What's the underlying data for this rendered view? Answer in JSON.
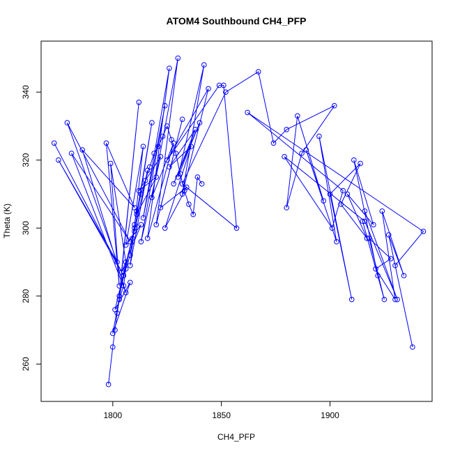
{
  "chart_data": {
    "type": "line",
    "title": "ATOM4 Southbound CH4_PFP",
    "xlabel": "CH4_PFP",
    "ylabel": "Theta (K)",
    "xlim": [
      1767,
      1947
    ],
    "ylim": [
      249,
      355
    ],
    "xticks": [
      1800,
      1850,
      1900
    ],
    "yticks": [
      260,
      280,
      300,
      320,
      340
    ],
    "grid": false,
    "legend": "none",
    "color": "#0000ff",
    "series": [
      {
        "x": [
          1773,
          1805,
          1775,
          1802,
          1779,
          1808,
          1781,
          1806,
          1786,
          1810,
          1797,
          1803,
          1799,
          1806,
          1800,
          1808,
          1801,
          1810,
          1803,
          1812,
          1804,
          1813,
          1806,
          1814,
          1808,
          1816,
          1810,
          1818,
          1811,
          1820,
          1812,
          1822,
          1813,
          1824,
          1814,
          1826,
          1816,
          1828,
          1818,
          1830,
          1820,
          1832,
          1822,
          1834,
          1824,
          1836,
          1826,
          1838,
          1828,
          1840,
          1830,
          1842,
          1832,
          1844,
          1825,
          1849,
          1851,
          1857,
          1832,
          1852,
          1867,
          1874,
          1880,
          1902,
          1887,
          1880,
          1885,
          1897,
          1889,
          1903,
          1895,
          1910,
          1900,
          1914,
          1905,
          1917,
          1908,
          1920,
          1911,
          1922,
          1915,
          1925,
          1918,
          1928,
          1921,
          1930,
          1924,
          1934,
          1927,
          1938,
          1930,
          1943,
          1862,
          1906,
          1901,
          1879,
          1916,
          1931,
          1916
        ],
        "y": [
          325,
          286,
          320,
          290,
          331,
          296,
          322,
          281,
          323,
          306,
          325,
          283,
          319,
          290,
          269,
          284,
          276,
          300,
          280,
          337,
          287,
          301,
          295,
          324,
          289,
          317,
          299,
          331,
          304,
          315,
          311,
          321,
          296,
          336,
          303,
          347,
          297,
          325,
          309,
          350,
          301,
          332,
          306,
          312,
          300,
          324,
          318,
          329,
          313,
          331,
          315,
          348,
          310,
          341,
          320,
          342,
          342,
          300,
          313,
          340,
          346,
          325,
          329,
          336,
          322,
          306,
          333,
          308,
          323,
          296,
          327,
          279,
          310,
          319,
          307,
          297,
          310,
          301,
          320,
          286,
          302,
          279,
          297,
          291,
          288,
          279,
          305,
          286,
          298,
          265,
          289,
          299,
          334,
          311,
          300,
          321,
          302,
          279,
          305
        ]
      },
      {
        "x": [
          1798,
          1800,
          1801,
          1802,
          1803,
          1805,
          1806,
          1808,
          1809,
          1810,
          1811,
          1813,
          1815,
          1817,
          1819,
          1821,
          1823,
          1825,
          1827,
          1829,
          1831,
          1833,
          1835,
          1837,
          1839,
          1841
        ],
        "y": [
          254,
          265,
          270,
          275,
          279,
          283,
          288,
          292,
          297,
          301,
          305,
          310,
          314,
          318,
          322,
          324,
          327,
          330,
          326,
          322,
          316,
          311,
          307,
          304,
          315,
          313
        ]
      }
    ]
  }
}
